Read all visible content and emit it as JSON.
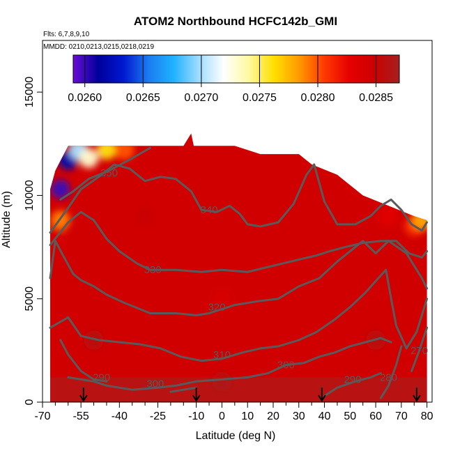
{
  "header": {
    "title": "ATOM2 Northbound HCFC142b_GMI",
    "flights": "Flts: 6,7,8,9,10",
    "mmdd": "MMDD: 0210,0213,0215,0218,0219"
  },
  "colors": {
    "colormap": [
      "#6a0dd6",
      "#00009a",
      "#0018d0",
      "#1a7cf0",
      "#1fb2ff",
      "#9fdcff",
      "#ffffff",
      "#fff9a0",
      "#ffe000",
      "#ff9a00",
      "#ff3a00",
      "#e60000",
      "#cc0000",
      "#a52020"
    ],
    "contour": "#5a5a5a",
    "arrow": "#000000"
  },
  "chart_data": {
    "type": "heatmap",
    "title": "ATOM2 Northbound HCFC142b_GMI",
    "xlabel": "Latitude (deg N)",
    "ylabel": "Altitude (m)",
    "xlim": [
      -70,
      82
    ],
    "ylim": [
      0,
      17500
    ],
    "xticks": [
      -70,
      -55,
      -40,
      -25,
      -10,
      0,
      10,
      20,
      30,
      40,
      50,
      60,
      70,
      80
    ],
    "xtick_labels": [
      "-70",
      "-55",
      "-40",
      "-25",
      "-10",
      "0",
      "10",
      "20",
      "30",
      "40",
      "50",
      "60",
      "70",
      "80"
    ],
    "xminor": [
      -65,
      -60,
      -50,
      -45,
      -35,
      -30,
      -20,
      -15,
      -5,
      5,
      15,
      25,
      35,
      45,
      55,
      65,
      75
    ],
    "yticks": [
      0,
      5000,
      10000,
      15000
    ],
    "ytick_labels": [
      "0",
      "5000",
      "10000",
      "15000"
    ],
    "colorbar": {
      "min": 0.0259,
      "max": 0.0287,
      "ticks": [
        0.026,
        0.0265,
        0.027,
        0.0275,
        0.028,
        0.0285
      ],
      "tick_labels": [
        "0.0260",
        "0.0265",
        "0.0270",
        "0.0275",
        "0.0280",
        "0.0285"
      ]
    },
    "data_top": [
      [
        -67,
        10300
      ],
      [
        -65,
        11200
      ],
      [
        -60,
        12400
      ],
      [
        -50,
        12400
      ],
      [
        -40,
        12400
      ],
      [
        -30,
        12400
      ],
      [
        -15,
        12400
      ],
      [
        -12,
        13000
      ],
      [
        -11,
        12400
      ],
      [
        5,
        12400
      ],
      [
        15,
        12000
      ],
      [
        30,
        12000
      ],
      [
        35,
        11500
      ],
      [
        45,
        11000
      ],
      [
        55,
        10000
      ],
      [
        65,
        9500
      ],
      [
        75,
        9000
      ],
      [
        80,
        8800
      ]
    ],
    "data_bottom": 0,
    "data_xrange": [
      -67,
      80
    ],
    "value_points": [
      {
        "lat": -63,
        "alt": 10300,
        "value": 0.026
      },
      {
        "lat": -60,
        "alt": 11700,
        "value": 0.0262
      },
      {
        "lat": -56,
        "alt": 12200,
        "value": 0.027
      },
      {
        "lat": -52,
        "alt": 11800,
        "value": 0.0273
      },
      {
        "lat": -45,
        "alt": 12200,
        "value": 0.0276
      },
      {
        "lat": -38,
        "alt": 12200,
        "value": 0.028
      },
      {
        "lat": -63,
        "alt": 8800,
        "value": 0.0279
      },
      {
        "lat": -65,
        "alt": 8000,
        "value": 0.0284
      },
      {
        "lat": -30,
        "alt": 9000,
        "value": 0.0285
      },
      {
        "lat": 0,
        "alt": 5000,
        "value": 0.0284
      },
      {
        "lat": 0,
        "alt": 1000,
        "value": 0.0286
      },
      {
        "lat": 65,
        "alt": 9000,
        "value": 0.0283
      },
      {
        "lat": 75,
        "alt": 8500,
        "value": 0.0281
      },
      {
        "lat": 78,
        "alt": 8800,
        "value": 0.0278
      },
      {
        "lat": 60,
        "alt": 3000,
        "value": 0.0286
      },
      {
        "lat": -50,
        "alt": 3000,
        "value": 0.0286
      }
    ],
    "contours": [
      {
        "label": "350",
        "label_at": [
          -44,
          11100
        ],
        "points": [
          [
            -63,
            9800
          ],
          [
            -58,
            10200
          ],
          [
            -52,
            10800
          ],
          [
            -44,
            11200
          ],
          [
            -35,
            11800
          ],
          [
            -28,
            12300
          ]
        ]
      },
      {
        "label": "340",
        "label_at": [
          -5,
          9300
        ],
        "points": [
          [
            -67,
            8200
          ],
          [
            -60,
            9400
          ],
          [
            -55,
            10300
          ],
          [
            -48,
            10900
          ],
          [
            -42,
            11500
          ],
          [
            -36,
            11300
          ],
          [
            -30,
            10700
          ],
          [
            -24,
            10900
          ],
          [
            -18,
            10800
          ],
          [
            -12,
            10200
          ],
          [
            -8,
            9300
          ],
          [
            -2,
            9200
          ],
          [
            3,
            9500
          ],
          [
            7,
            9100
          ],
          [
            10,
            8600
          ],
          [
            15,
            8500
          ],
          [
            22,
            8700
          ],
          [
            28,
            9600
          ],
          [
            33,
            11000
          ],
          [
            36,
            11500
          ],
          [
            40,
            9700
          ],
          [
            45,
            8600
          ],
          [
            52,
            8600
          ],
          [
            58,
            9000
          ],
          [
            62,
            9500
          ],
          [
            66,
            9800
          ],
          [
            70,
            9300
          ],
          [
            74,
            8600
          ],
          [
            78,
            8300
          ],
          [
            80,
            8700
          ]
        ]
      },
      {
        "label": "330",
        "label_at": [
          -27,
          6400
        ],
        "points": [
          [
            -67,
            7600
          ],
          [
            -60,
            8700
          ],
          [
            -55,
            9200
          ],
          [
            -50,
            8800
          ],
          [
            -45,
            7900
          ],
          [
            -40,
            7300
          ],
          [
            -33,
            6700
          ],
          [
            -28,
            6400
          ],
          [
            -18,
            6400
          ],
          [
            -8,
            6300
          ],
          [
            0,
            6400
          ],
          [
            10,
            6300
          ],
          [
            20,
            6600
          ],
          [
            30,
            6900
          ],
          [
            37,
            7100
          ],
          [
            42,
            7300
          ],
          [
            48,
            7500
          ],
          [
            55,
            7700
          ],
          [
            62,
            7800
          ],
          [
            68,
            7800
          ],
          [
            73,
            7200
          ],
          [
            78,
            7000
          ],
          [
            80,
            7300
          ]
        ]
      },
      {
        "label": "320",
        "label_at": [
          -2,
          4600
        ],
        "points": [
          [
            -67,
            6000
          ],
          [
            -65,
            7800
          ],
          [
            -62,
            7100
          ],
          [
            -58,
            6200
          ],
          [
            -55,
            5900
          ],
          [
            -50,
            5600
          ],
          [
            -45,
            5200
          ],
          [
            -38,
            4800
          ],
          [
            -28,
            4300
          ],
          [
            -18,
            4300
          ],
          [
            -10,
            4200
          ],
          [
            -5,
            4300
          ],
          [
            5,
            4700
          ],
          [
            15,
            4900
          ],
          [
            22,
            5000
          ],
          [
            30,
            5600
          ],
          [
            38,
            6000
          ],
          [
            45,
            6800
          ],
          [
            52,
            7500
          ],
          [
            55,
            7800
          ],
          [
            60,
            7200
          ],
          [
            65,
            7800
          ],
          [
            72,
            7200
          ],
          [
            78,
            6000
          ],
          [
            80,
            5500
          ]
        ]
      },
      {
        "label": "310",
        "label_at": [
          0,
          2300
        ],
        "points": [
          [
            -67,
            3600
          ],
          [
            -60,
            4100
          ],
          [
            -55,
            3200
          ],
          [
            -48,
            3000
          ],
          [
            -40,
            2900
          ],
          [
            -32,
            2800
          ],
          [
            -24,
            2600
          ],
          [
            -16,
            2200
          ],
          [
            -8,
            2000
          ],
          [
            0,
            2100
          ],
          [
            8,
            2400
          ],
          [
            15,
            2600
          ],
          [
            22,
            2700
          ],
          [
            30,
            3000
          ],
          [
            37,
            3400
          ],
          [
            44,
            4000
          ],
          [
            50,
            4600
          ],
          [
            56,
            5300
          ],
          [
            61,
            6000
          ],
          [
            64,
            6400
          ],
          [
            66,
            5000
          ],
          [
            68,
            3700
          ],
          [
            72,
            2600
          ],
          [
            76,
            3400
          ],
          [
            80,
            5000
          ]
        ]
      },
      {
        "label": "300",
        "label_at": [
          25,
          1800
        ],
        "points": [
          [
            -60,
            1200
          ],
          [
            -55,
            1100
          ],
          [
            -50,
            1000
          ],
          [
            -45,
            800
          ],
          [
            -35,
            600
          ],
          [
            -25,
            700
          ],
          [
            -18,
            800
          ],
          [
            -10,
            1000
          ],
          [
            0,
            1100
          ],
          [
            10,
            1200
          ],
          [
            18,
            1400
          ],
          [
            25,
            1800
          ],
          [
            32,
            1900
          ],
          [
            38,
            2200
          ],
          [
            44,
            2400
          ],
          [
            50,
            2700
          ],
          [
            56,
            2900
          ],
          [
            62,
            3100
          ],
          [
            66,
            2900
          ]
        ]
      },
      {
        "label": "290",
        "label_at": [
          -47,
          1200
        ],
        "points": [
          [
            -63,
            3000
          ],
          [
            -60,
            2300
          ],
          [
            -55,
            1500
          ],
          [
            -50,
            1100
          ],
          [
            -45,
            1000
          ]
        ]
      },
      {
        "label": "290",
        "label_at": [
          51,
          1100
        ],
        "points": [
          [
            40,
            300
          ],
          [
            45,
            700
          ],
          [
            52,
            1000
          ],
          [
            58,
            1200
          ],
          [
            62,
            1400
          ]
        ]
      },
      {
        "label": "300",
        "label_at": [
          -26,
          900
        ],
        "points": [
          [
            -20,
            500
          ],
          [
            -10,
            700
          ]
        ]
      },
      {
        "label": "280",
        "label_at": [
          65,
          1200
        ],
        "points": [
          [
            62,
            200
          ],
          [
            65,
            800
          ],
          [
            68,
            1800
          ],
          [
            70,
            2700
          ]
        ]
      },
      {
        "label": "270",
        "label_at": [
          77,
          2500
        ],
        "points": [
          [
            74,
            1500
          ],
          [
            77,
            2500
          ],
          [
            80,
            3600
          ]
        ]
      }
    ],
    "arrows": [
      -54,
      -10,
      39,
      76
    ]
  }
}
